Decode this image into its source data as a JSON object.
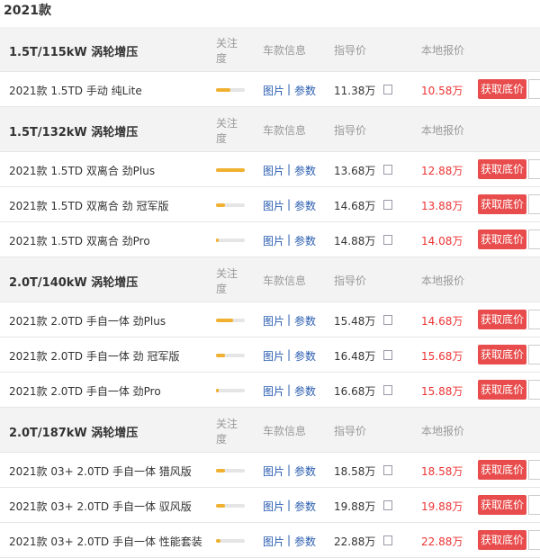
{
  "title": "2021款",
  "columns": {
    "attention": "关注度",
    "info": "车款信息",
    "guide": "指导价",
    "local": "本地报价"
  },
  "links": {
    "photo": "图片",
    "sep": "|",
    "params": "参数"
  },
  "button": "获取底价",
  "groups": [
    {
      "name": "1.5T/115kW 涡轮增压",
      "rows": [
        {
          "name": "2021款 1.5TD 手动 纯Lite",
          "attention": 0.5,
          "guide_price": "11.38万",
          "local_price": "10.58万"
        }
      ]
    },
    {
      "name": "1.5T/132kW 涡轮增压",
      "rows": [
        {
          "name": "2021款 1.5TD 双离合 劲Plus",
          "attention": 1.0,
          "guide_price": "13.68万",
          "local_price": "12.88万"
        },
        {
          "name": "2021款 1.5TD 双离合 劲 冠军版",
          "attention": 0.3,
          "guide_price": "14.68万",
          "local_price": "13.88万"
        },
        {
          "name": "2021款 1.5TD 双离合 劲Pro",
          "attention": 0.1,
          "guide_price": "14.88万",
          "local_price": "14.08万"
        }
      ]
    },
    {
      "name": "2.0T/140kW 涡轮增压",
      "rows": [
        {
          "name": "2021款 2.0TD 手自一体 劲Plus",
          "attention": 0.6,
          "guide_price": "15.48万",
          "local_price": "14.68万"
        },
        {
          "name": "2021款 2.0TD 手自一体 劲 冠军版",
          "attention": 0.3,
          "guide_price": "16.48万",
          "local_price": "15.68万"
        },
        {
          "name": "2021款 2.0TD 手自一体 劲Pro",
          "attention": 0.1,
          "guide_price": "16.68万",
          "local_price": "15.88万"
        }
      ]
    },
    {
      "name": "2.0T/187kW 涡轮增压",
      "rows": [
        {
          "name": "2021款 03+ 2.0TD 手自一体 猎风版",
          "attention": 0.3,
          "guide_price": "18.58万",
          "local_price": "18.58万"
        },
        {
          "name": "2021款 03+ 2.0TD 手自一体 驭风版",
          "attention": 0.3,
          "guide_price": "19.88万",
          "local_price": "19.88万"
        },
        {
          "name": "2021款 03+ 2.0TD 手自一体 性能套装",
          "attention": 0.15,
          "guide_price": "22.88万",
          "local_price": "22.88万"
        }
      ]
    }
  ]
}
